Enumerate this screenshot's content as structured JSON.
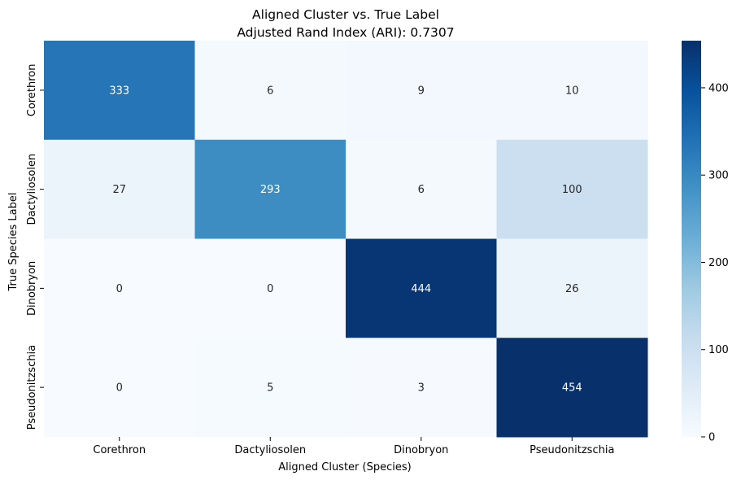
{
  "chart_data": {
    "type": "heatmap",
    "title": "Aligned Cluster vs. True Label",
    "subtitle": "Adjusted Rand Index (ARI): 0.7307",
    "xlabel": "Aligned Cluster (Species)",
    "ylabel": "True Species Label",
    "x_categories": [
      "Corethron",
      "Dactyliosolen",
      "Dinobryon",
      "Pseudonitzschia"
    ],
    "y_categories": [
      "Corethron",
      "Dactyliosolen",
      "Dinobryon",
      "Pseudonitzschia"
    ],
    "values": [
      [
        333,
        6,
        9,
        10
      ],
      [
        27,
        293,
        6,
        100
      ],
      [
        0,
        0,
        444,
        26
      ],
      [
        0,
        5,
        3,
        454
      ]
    ],
    "colormap": "Blues",
    "value_range": [
      0,
      454
    ],
    "colorbar_ticks": [
      "0",
      "100",
      "200",
      "300",
      "400"
    ],
    "grid": false
  }
}
